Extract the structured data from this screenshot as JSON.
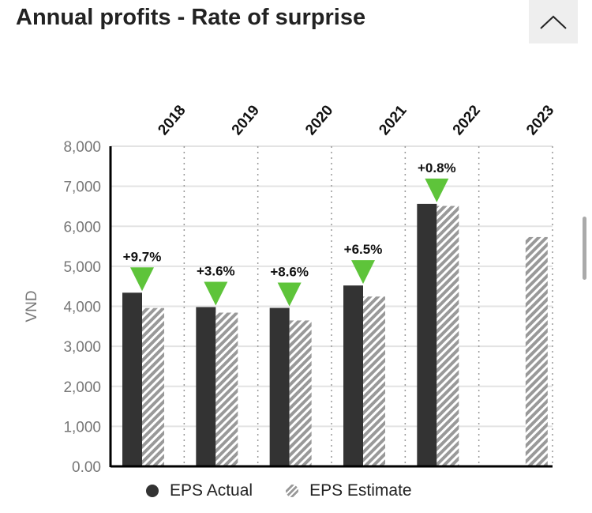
{
  "header": {
    "title": "Annual profits - Rate of surprise",
    "collapse_icon": "chevron-up-icon"
  },
  "chart_data": {
    "type": "bar",
    "title": "Annual profits - Rate of surprise",
    "ylabel": "VND",
    "ylim": [
      0,
      8000
    ],
    "yticks": [
      "0.00",
      "1,000",
      "2,000",
      "3,000",
      "4,000",
      "5,000",
      "6,000",
      "7,000",
      "8,000"
    ],
    "categories": [
      "2018",
      "2019",
      "2020",
      "2021",
      "2022",
      "2023"
    ],
    "series": [
      {
        "name": "EPS Actual",
        "values": [
          4340,
          3980,
          3960,
          4520,
          6560,
          null
        ]
      },
      {
        "name": "EPS Estimate",
        "values": [
          3956,
          3842,
          3646,
          4244,
          6508,
          5730
        ]
      }
    ],
    "surprise_labels": [
      "+9.7%",
      "+3.6%",
      "+8.6%",
      "+6.5%",
      "+0.8%",
      null
    ],
    "colors": {
      "actual": "#333333",
      "estimate": "#999999",
      "marker": "#5ec43a"
    },
    "legend": "bottom"
  }
}
